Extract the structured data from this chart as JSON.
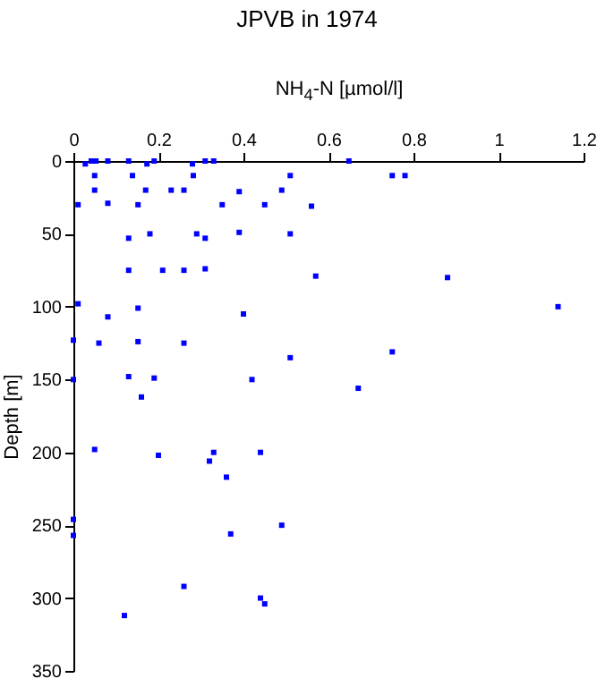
{
  "chart_data": {
    "type": "scatter",
    "title": "JPVB in 1974",
    "xlabel": "NH$_{4}$-N [µmol/l]",
    "ylabel": "Depth [m]",
    "xlim": [
      0,
      1.2
    ],
    "xticks": [
      0,
      0.2,
      0.4,
      0.6,
      0.8,
      1,
      1.2
    ],
    "ylim": [
      350,
      0
    ],
    "yticks": [
      0,
      50,
      100,
      150,
      200,
      250,
      300,
      350
    ],
    "grid": false,
    "marker": "square",
    "series": [
      {
        "color": "#0000ff",
        "x": [
          0.028,
          0.042,
          0.053,
          0.081,
          0.13,
          0.173,
          0.19,
          0.28,
          0.31,
          0.33,
          0.648,
          0.05,
          0.139,
          0.282,
          0.51,
          0.75,
          0.78,
          0.05,
          0.17,
          0.23,
          0.26,
          0.39,
          0.49,
          0.011,
          0.081,
          0.152,
          0.35,
          0.45,
          0.56,
          0.13,
          0.18,
          0.29,
          0.31,
          0.39,
          0.51,
          0.13,
          0.21,
          0.26,
          0.31,
          0.57,
          0.88,
          0.011,
          0.152,
          1.14,
          0.081,
          0.4,
          0.06,
          0,
          0.152,
          0.26,
          0.51,
          0.75,
          0,
          0.13,
          0.19,
          0.42,
          0.67,
          0.16,
          0.05,
          0.2,
          0.32,
          0.33,
          0.44,
          0.36,
          0,
          0,
          0.37,
          0.49,
          0.26,
          0.44,
          0.45,
          0.12
        ],
        "values": [
          2,
          0,
          0,
          0,
          0,
          2,
          0,
          2,
          0,
          0,
          0,
          10,
          10,
          10,
          10,
          10,
          10,
          20,
          20,
          20,
          20,
          21,
          20,
          30,
          29,
          30,
          30,
          30,
          31,
          53,
          50,
          50,
          53,
          49,
          50,
          75,
          75,
          75,
          74,
          79,
          80,
          98,
          101,
          100,
          107,
          105,
          125,
          123,
          124,
          125,
          135,
          131,
          150,
          148,
          149,
          150,
          156,
          162,
          198,
          202,
          206,
          200,
          200,
          217,
          246,
          257,
          256,
          250,
          292,
          300,
          304,
          312
        ]
      }
    ]
  }
}
